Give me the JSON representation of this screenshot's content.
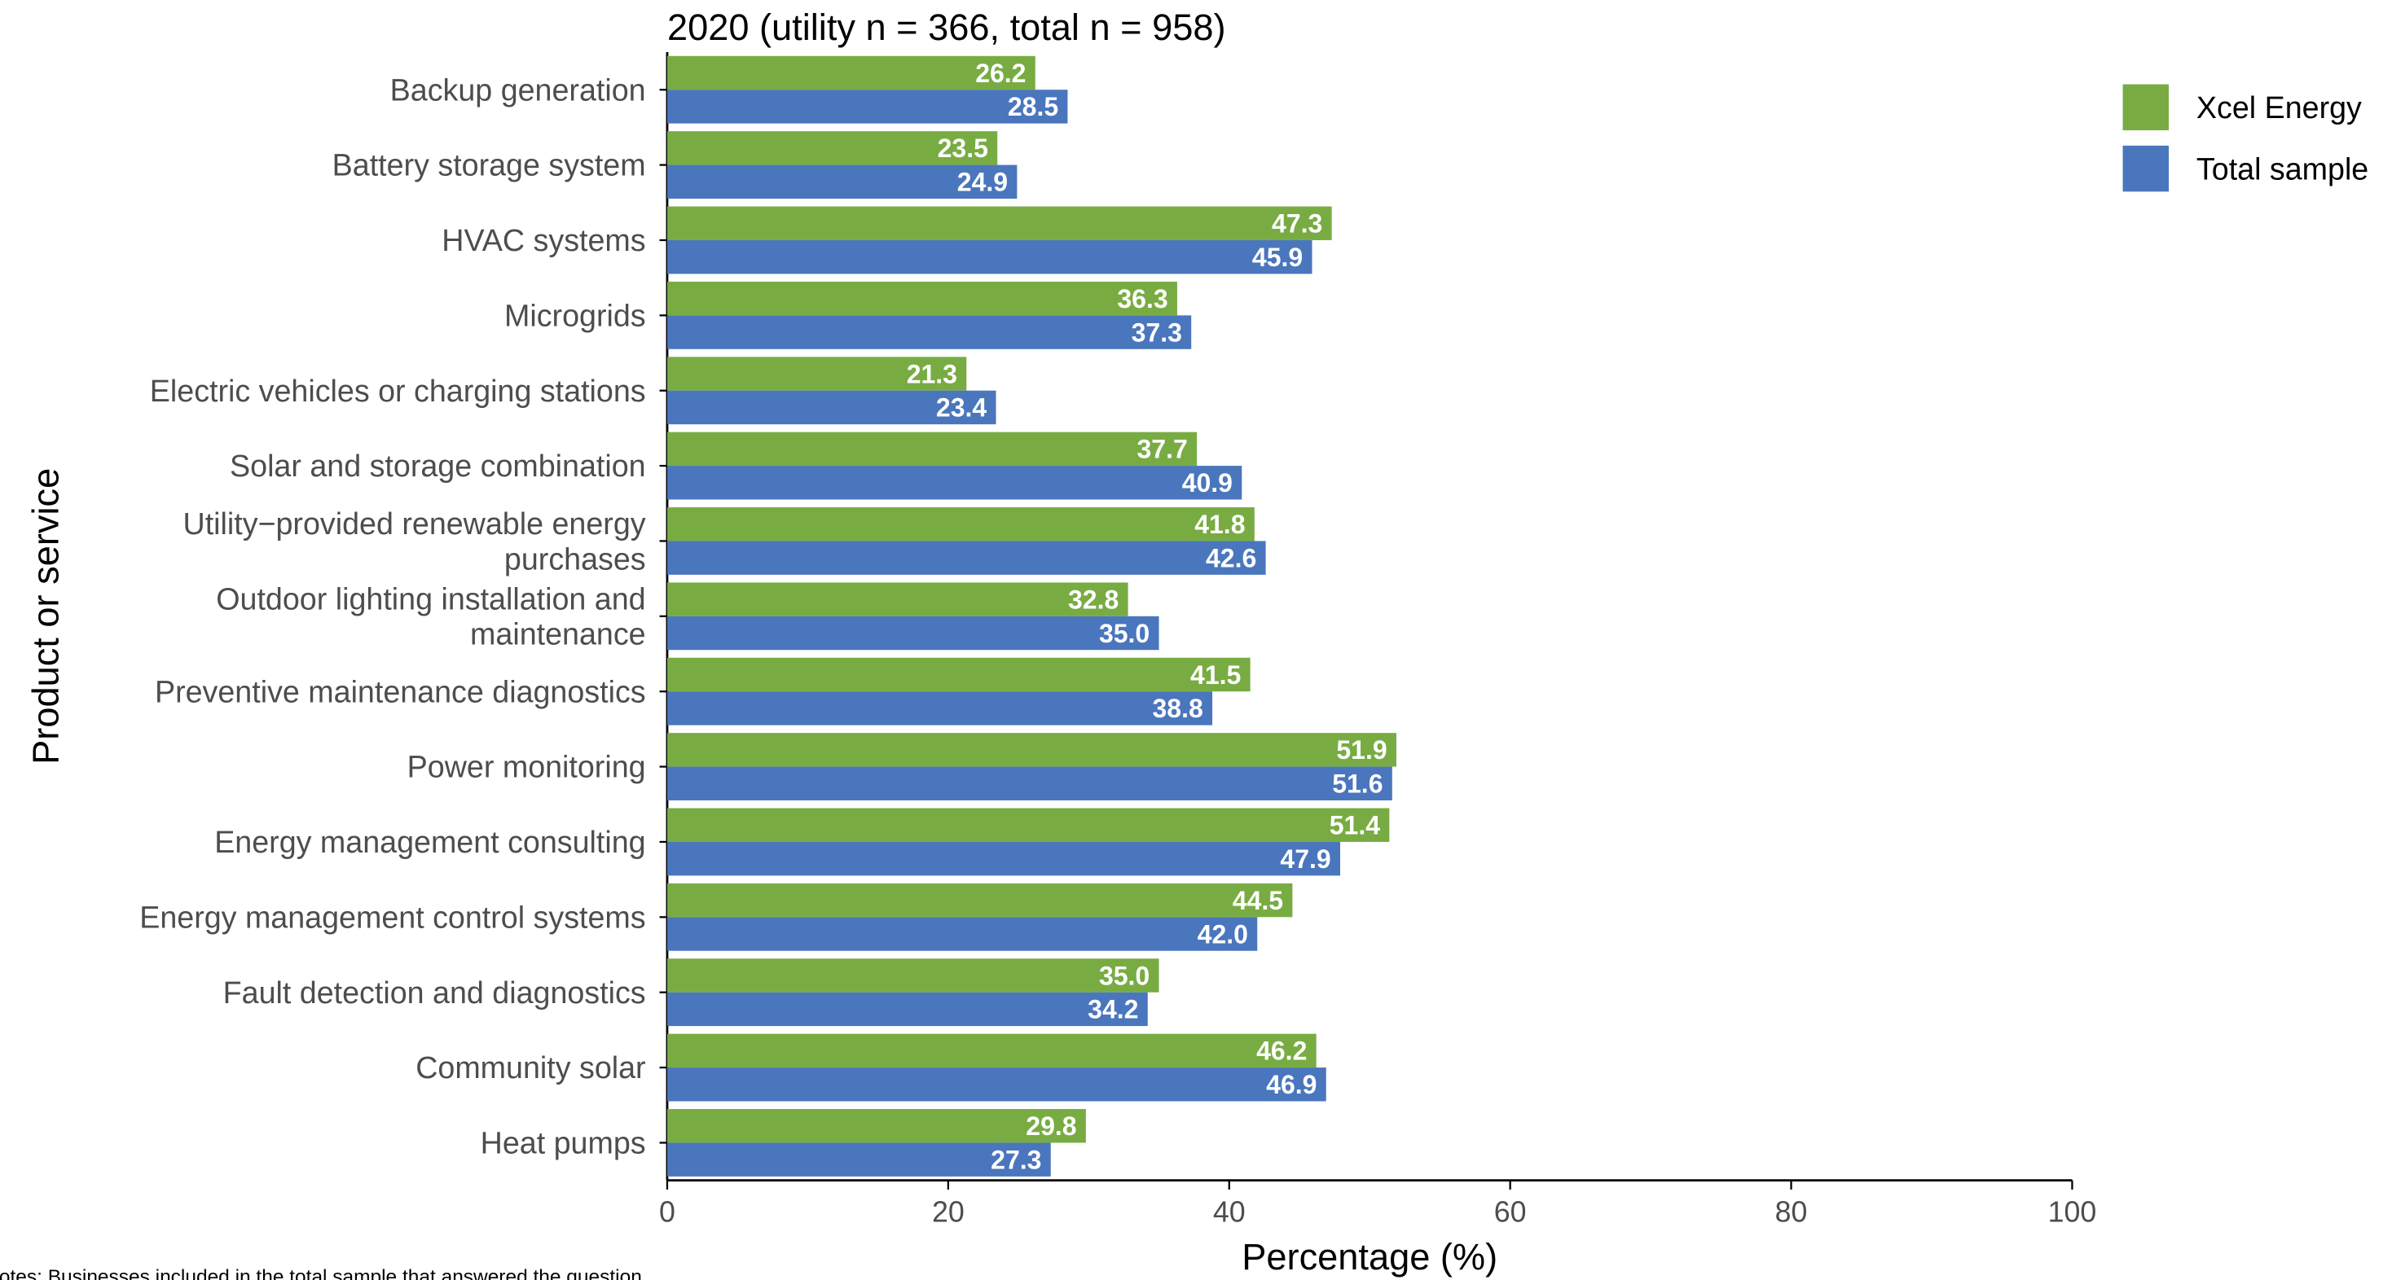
{
  "chart_data": {
    "type": "bar",
    "orientation": "horizontal",
    "title": "2020 (utility n = 366, total n = 958)",
    "x_label": "Percentage (%)",
    "y_label": "Product or service",
    "note": "Notes: Businesses included in the total sample that answered the question",
    "categories": [
      [
        "Backup generation"
      ],
      [
        "Battery storage system"
      ],
      [
        "HVAC systems"
      ],
      [
        "Microgrids"
      ],
      [
        "Electric vehicles or charging stations"
      ],
      [
        "Solar and storage combination"
      ],
      [
        "Utility−provided renewable energy",
        "purchases"
      ],
      [
        "Outdoor lighting installation and",
        "maintenance"
      ],
      [
        "Preventive maintenance diagnostics"
      ],
      [
        "Power monitoring"
      ],
      [
        "Energy management consulting"
      ],
      [
        "Energy management control systems"
      ],
      [
        "Fault detection and diagnostics"
      ],
      [
        "Community solar"
      ],
      [
        "Heat pumps"
      ]
    ],
    "series": [
      {
        "name": "Xcel Energy",
        "color": "#78ac43",
        "values": [
          26.2,
          23.5,
          47.3,
          36.3,
          21.3,
          37.7,
          41.8,
          32.8,
          41.5,
          51.9,
          51.4,
          44.5,
          35,
          46.2,
          29.8
        ],
        "value_labels": [
          "26.2",
          "23.5",
          "47.3",
          "36.3",
          "21.3",
          "37.7",
          "41.8",
          "32.8",
          "41.5",
          "51.9",
          "51.4",
          "44.5",
          "35.0",
          "46.2",
          "29.8"
        ]
      },
      {
        "name": "Total sample",
        "color": "#4a76bd",
        "values": [
          28.5,
          24.9,
          45.9,
          37.3,
          23.4,
          40.9,
          42.6,
          35,
          38.8,
          51.6,
          47.9,
          42,
          34.2,
          46.9,
          27.3
        ],
        "value_labels": [
          "28.5",
          "24.9",
          "45.9",
          "37.3",
          "23.4",
          "40.9",
          "42.6",
          "35.0",
          "38.8",
          "51.6",
          "47.9",
          "42.0",
          "34.2",
          "46.9",
          "27.3"
        ]
      }
    ],
    "xlim": [
      0,
      100
    ],
    "xticks": [
      0,
      20,
      40,
      60,
      80,
      100
    ],
    "legend": "top-right",
    "grid": false
  }
}
